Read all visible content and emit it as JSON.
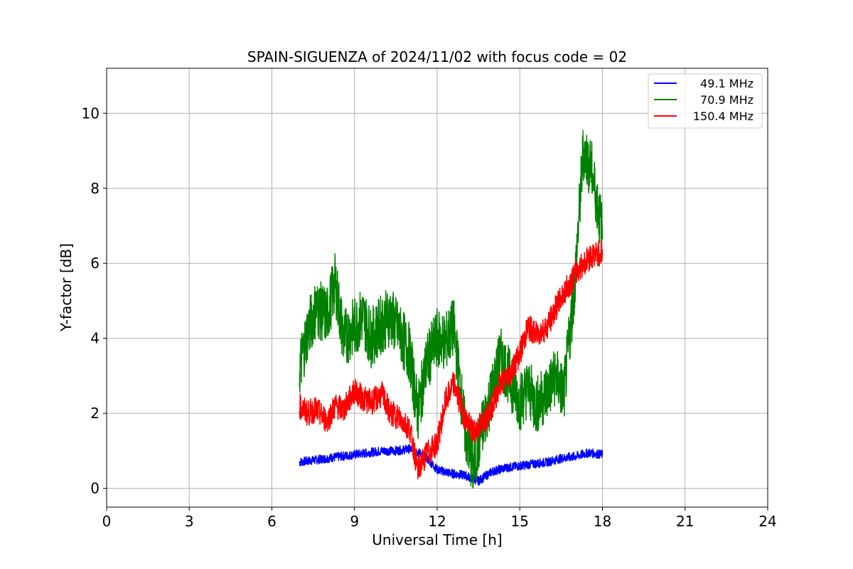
{
  "chart_data": {
    "type": "line",
    "title": "SPAIN-SIGUENZA of 2024/11/02 with focus code = 02",
    "xlabel": "Universal Time [h]",
    "ylabel": "Y-factor [dB]",
    "xlim": [
      0,
      24
    ],
    "ylim": [
      -0.5,
      11.2
    ],
    "xticks": [
      0,
      3,
      6,
      9,
      12,
      15,
      18,
      21,
      24
    ],
    "yticks": [
      0,
      2,
      4,
      6,
      8,
      10
    ],
    "grid": true,
    "legend_position": "top-right",
    "series": [
      {
        "name": "49.1 MHz",
        "color": "#0000ff",
        "x": [
          7.0,
          7.5,
          8.0,
          8.5,
          9.0,
          9.5,
          10.0,
          10.5,
          11.0,
          11.5,
          12.0,
          12.5,
          13.0,
          13.5,
          14.0,
          14.5,
          15.0,
          15.5,
          16.0,
          16.5,
          17.0,
          17.5,
          18.0
        ],
        "y": [
          0.7,
          0.75,
          0.8,
          0.85,
          0.9,
          0.95,
          1.0,
          1.0,
          1.05,
          0.9,
          0.5,
          0.4,
          0.35,
          0.2,
          0.45,
          0.55,
          0.6,
          0.65,
          0.7,
          0.8,
          0.85,
          0.95,
          0.9
        ],
        "amplitude": 0.12
      },
      {
        "name": "70.9 MHz",
        "color": "#008000",
        "x": [
          7.0,
          7.3,
          7.6,
          8.0,
          8.3,
          8.6,
          9.0,
          9.3,
          9.6,
          10.0,
          10.3,
          10.6,
          11.0,
          11.3,
          11.6,
          12.0,
          12.3,
          12.6,
          13.0,
          13.3,
          13.6,
          14.0,
          14.3,
          14.6,
          15.0,
          15.3,
          15.6,
          16.0,
          16.3,
          16.6,
          17.0,
          17.3,
          17.6,
          18.0
        ],
        "y": [
          3.2,
          4.2,
          4.8,
          4.6,
          5.5,
          4.0,
          4.3,
          4.6,
          4.0,
          4.4,
          4.6,
          4.2,
          3.6,
          2.0,
          3.3,
          4.0,
          3.9,
          4.3,
          1.6,
          0.5,
          1.5,
          2.6,
          3.5,
          3.0,
          2.3,
          2.7,
          2.2,
          2.6,
          3.0,
          2.5,
          5.5,
          9.0,
          8.5,
          6.8
        ],
        "amplitude": 0.8
      },
      {
        "name": "150.4 MHz",
        "color": "#ff0000",
        "x": [
          7.0,
          7.3,
          7.6,
          8.0,
          8.3,
          8.6,
          9.0,
          9.3,
          9.6,
          10.0,
          10.3,
          10.6,
          11.0,
          11.3,
          11.6,
          12.0,
          12.3,
          12.6,
          13.0,
          13.3,
          13.6,
          14.0,
          14.3,
          14.6,
          15.0,
          15.3,
          15.6,
          16.0,
          16.3,
          16.6,
          17.0,
          17.3,
          17.6,
          18.0
        ],
        "y": [
          2.2,
          2.0,
          2.1,
          1.8,
          2.2,
          2.1,
          2.6,
          2.4,
          2.3,
          2.5,
          2.0,
          1.9,
          1.6,
          0.5,
          0.9,
          1.2,
          2.3,
          2.8,
          1.9,
          1.5,
          1.7,
          2.2,
          2.8,
          3.0,
          3.6,
          4.3,
          4.1,
          4.3,
          4.8,
          5.2,
          5.7,
          6.0,
          6.2,
          6.3
        ],
        "amplitude": 0.35
      }
    ]
  }
}
